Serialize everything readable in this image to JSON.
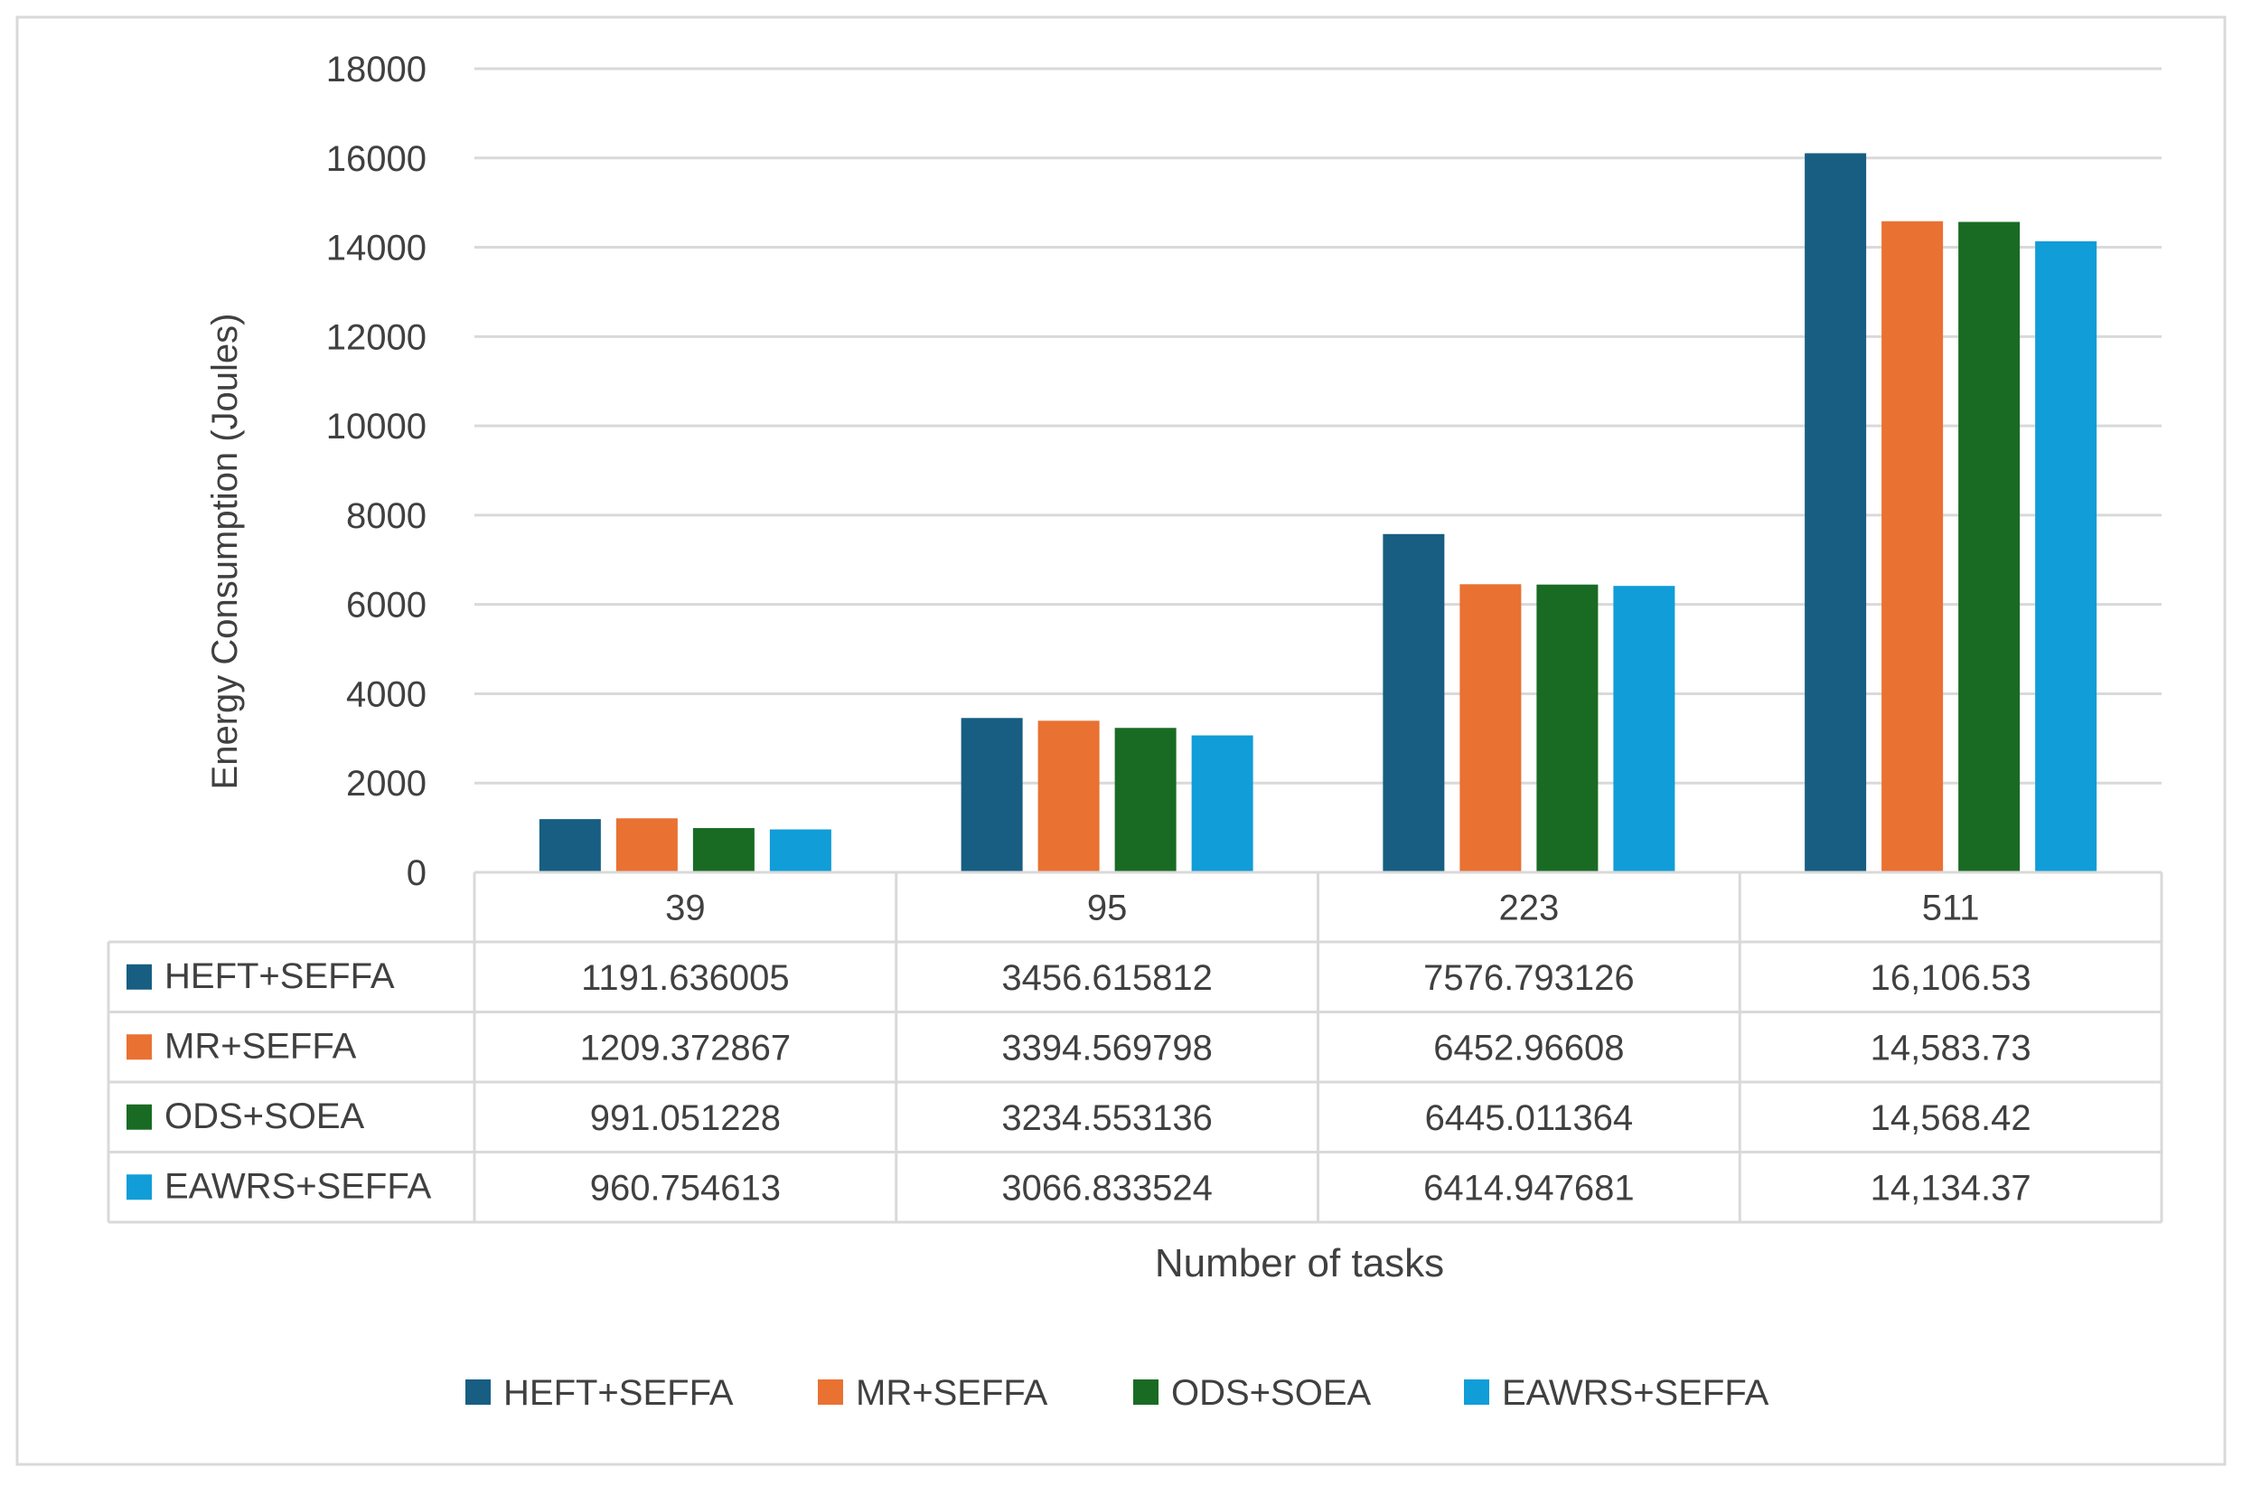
{
  "chart_data": {
    "type": "bar",
    "title": "",
    "xlabel": "Number of tasks",
    "ylabel": "Energy Consumption (Joules)",
    "ylim": [
      0,
      18000
    ],
    "yticks": [
      0,
      2000,
      4000,
      6000,
      8000,
      10000,
      12000,
      14000,
      16000,
      18000
    ],
    "grid": true,
    "legend_position": "bottom",
    "categories": [
      "39",
      "95",
      "223",
      "511"
    ],
    "series": [
      {
        "name": "HEFT+SEFFA",
        "color": "#175e82",
        "values": [
          1191.636005,
          3456.615812,
          7576.793126,
          16106.53
        ],
        "labels": [
          "1191.636005",
          "3456.615812",
          "7576.793126",
          "16,106.53"
        ]
      },
      {
        "name": "MR+SEFFA",
        "color": "#e97132",
        "values": [
          1209.372867,
          3394.569798,
          6452.96608,
          14583.73
        ],
        "labels": [
          "1209.372867",
          "3394.569798",
          "6452.96608",
          "14,583.73"
        ]
      },
      {
        "name": "ODS+SOEA",
        "color": "#196b24",
        "values": [
          991.051228,
          3234.553136,
          6445.011364,
          14568.42
        ],
        "labels": [
          "991.051228",
          "3234.553136",
          "6445.011364",
          "14,568.42"
        ]
      },
      {
        "name": "EAWRS+SEFFA",
        "color": "#109dd8",
        "values": [
          960.754613,
          3066.833524,
          6414.947681,
          14134.37
        ],
        "labels": [
          "960.754613",
          "3066.833524",
          "6414.947681",
          "14,134.37"
        ]
      }
    ]
  }
}
